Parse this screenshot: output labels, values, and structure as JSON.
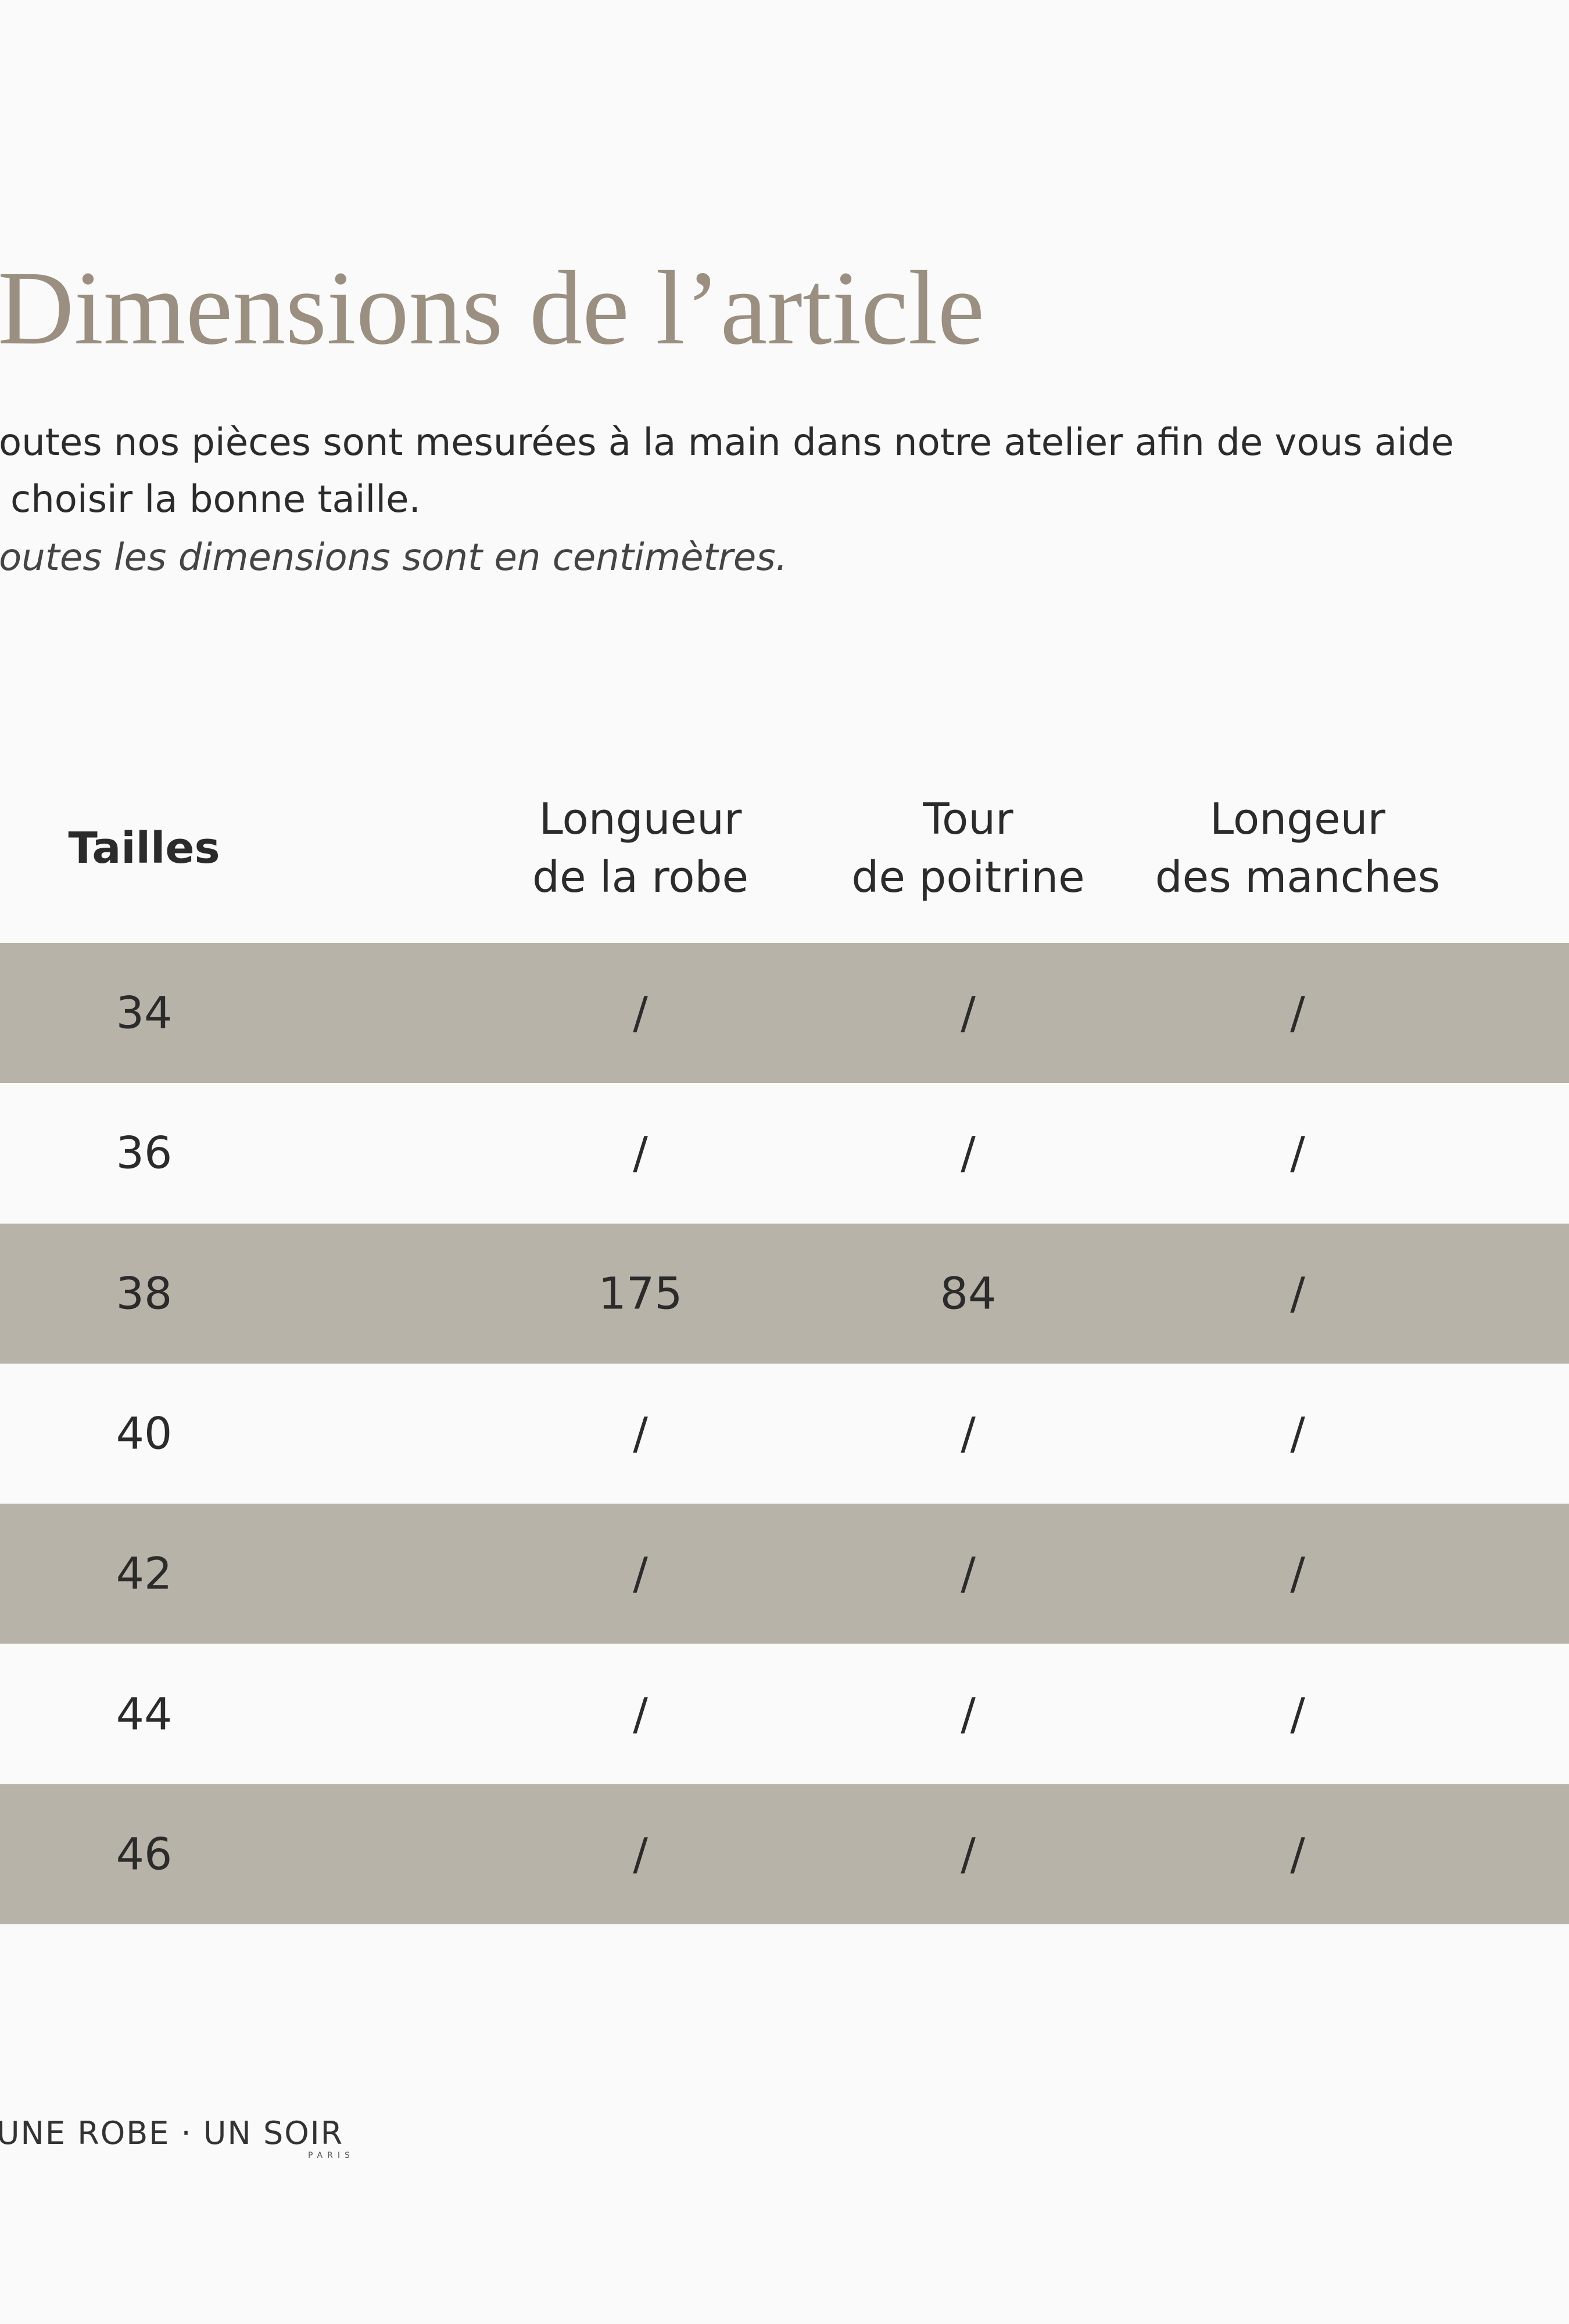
{
  "header": {
    "title": "Dimensions de l’article"
  },
  "intro": {
    "lines": [
      "outes nos pièces sont mesurées à la main dans notre atelier afin de vous aide",
      "choisir la bonne taille."
    ],
    "note": "outes les dimensions sont en centimètres."
  },
  "table": {
    "columns": [
      [
        "Tailles"
      ],
      [
        "Longueur",
        "de la robe"
      ],
      [
        "Tour",
        "de poitrine"
      ],
      [
        "Longeur",
        "des manches"
      ]
    ],
    "rows": [
      [
        "34",
        "/",
        "/",
        "/"
      ],
      [
        "36",
        "/",
        "/",
        "/"
      ],
      [
        "38",
        "175",
        "84",
        "/"
      ],
      [
        "40",
        "/",
        "/",
        "/"
      ],
      [
        "42",
        "/",
        "/",
        "/"
      ],
      [
        "44",
        "/",
        "/",
        "/"
      ],
      [
        "46",
        "/",
        "/",
        "/"
      ]
    ]
  },
  "footer": {
    "logo": "UNE ROBE · UN SOIR",
    "sublogo": "PARIS"
  }
}
